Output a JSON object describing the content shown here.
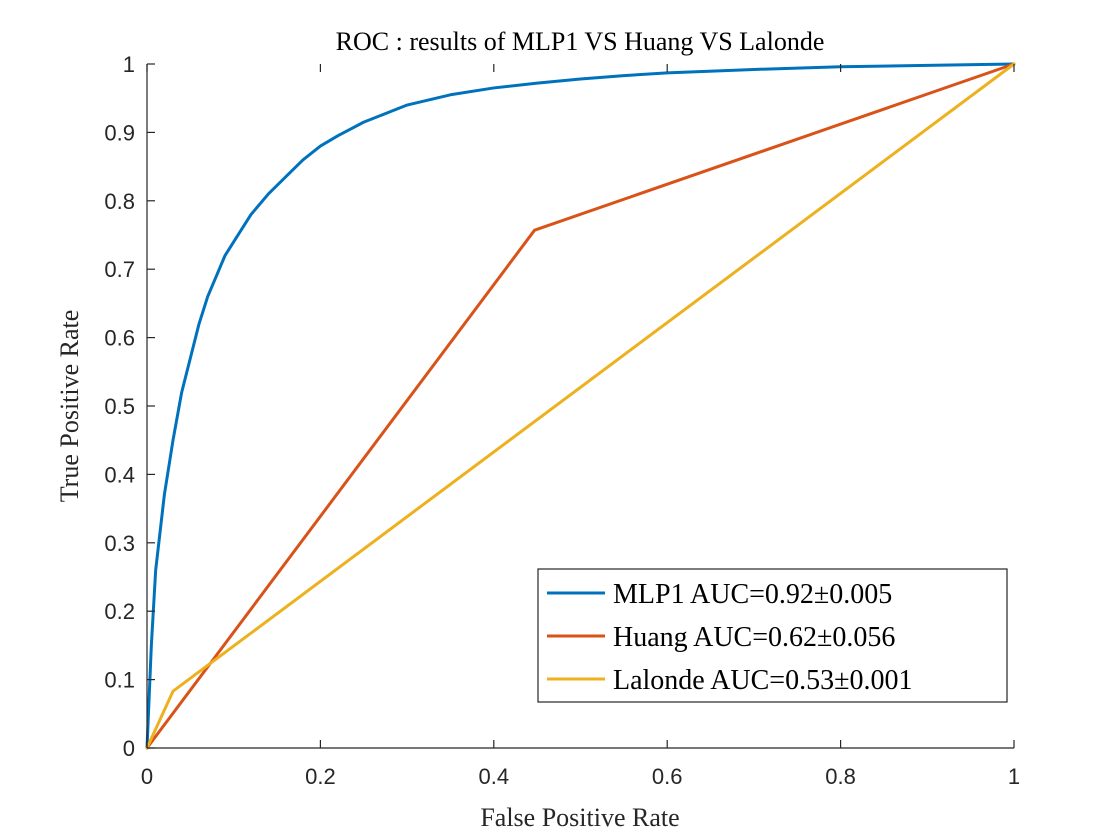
{
  "chart_data": {
    "type": "line",
    "title": "ROC : results of MLP1 VS Huang VS Lalonde",
    "xlabel": "False Positive Rate",
    "ylabel": "True Positive Rate",
    "xlim": [
      0,
      1
    ],
    "ylim": [
      0,
      1
    ],
    "xticks": [
      "0",
      "0.2",
      "0.4",
      "0.6",
      "0.8",
      "1"
    ],
    "yticks": [
      "0",
      "0.1",
      "0.2",
      "0.3",
      "0.4",
      "0.5",
      "0.6",
      "0.7",
      "0.8",
      "0.9",
      "1"
    ],
    "grid": false,
    "legend_position": "bottom-right",
    "series": [
      {
        "name": "MLP1 AUC=0.92±0.005",
        "color": "#0072BD",
        "x": [
          0,
          0.005,
          0.01,
          0.02,
          0.03,
          0.04,
          0.05,
          0.06,
          0.07,
          0.08,
          0.09,
          0.1,
          0.12,
          0.14,
          0.16,
          0.18,
          0.2,
          0.22,
          0.25,
          0.28,
          0.3,
          0.35,
          0.4,
          0.45,
          0.5,
          0.55,
          0.6,
          0.7,
          0.8,
          0.9,
          1.0
        ],
        "y": [
          0,
          0.15,
          0.26,
          0.37,
          0.45,
          0.52,
          0.57,
          0.62,
          0.66,
          0.69,
          0.72,
          0.74,
          0.78,
          0.81,
          0.835,
          0.86,
          0.88,
          0.895,
          0.915,
          0.93,
          0.94,
          0.955,
          0.965,
          0.972,
          0.978,
          0.983,
          0.987,
          0.992,
          0.996,
          0.998,
          1.0
        ]
      },
      {
        "name": "Huang AUC=0.62±0.056",
        "color": "#D95319",
        "x": [
          0,
          0.447,
          1.0
        ],
        "y": [
          0,
          0.757,
          1.0
        ]
      },
      {
        "name": "Lalonde AUC=0.53±0.001",
        "color": "#EDB120",
        "x": [
          0,
          0.03,
          1.0
        ],
        "y": [
          0,
          0.083,
          1.0
        ]
      }
    ]
  }
}
